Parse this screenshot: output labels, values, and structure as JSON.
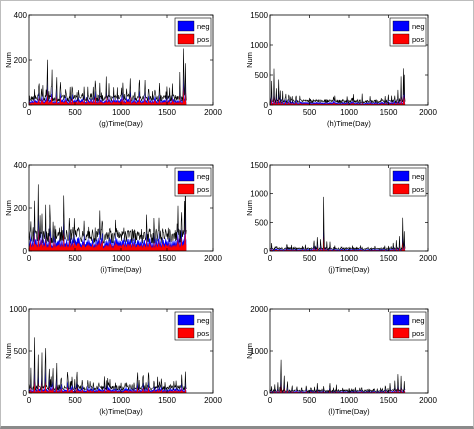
{
  "figure": {
    "background": "#ffffff",
    "colors": {
      "neg": "#0000ff",
      "pos": "#ff0000",
      "trace": "#000000",
      "axis_bg": "#ffffff"
    }
  },
  "chart_data": [
    {
      "type": "area",
      "id": "g",
      "xlabel": "(g)Time(Day)",
      "ylabel": "Num",
      "xlim": [
        0,
        2000
      ],
      "ylim": [
        0,
        400
      ],
      "xticks": [
        0,
        500,
        1000,
        1500,
        2000
      ],
      "yticks": [
        0,
        200,
        400
      ],
      "legend": {
        "entries": [
          "neg",
          "pos"
        ],
        "location": "top-right"
      },
      "series": [
        {
          "name": "neg",
          "baseline": 30,
          "pos_fraction": 0.35,
          "spikes": [
            [
              110,
              150
            ],
            [
              150,
              120
            ],
            [
              200,
              260
            ],
            [
              250,
              230
            ],
            [
              300,
              180
            ],
            [
              340,
              150
            ],
            [
              400,
              120
            ],
            [
              470,
              170
            ],
            [
              540,
              120
            ],
            [
              600,
              110
            ],
            [
              640,
              100
            ],
            [
              720,
              130
            ],
            [
              770,
              110
            ],
            [
              840,
              160
            ],
            [
              870,
              130
            ],
            [
              960,
              100
            ],
            [
              1020,
              140
            ],
            [
              1060,
              120
            ],
            [
              1100,
              150
            ],
            [
              1150,
              110
            ],
            [
              1200,
              170
            ],
            [
              1260,
              140
            ],
            [
              1300,
              120
            ],
            [
              1370,
              110
            ],
            [
              1420,
              140
            ],
            [
              1500,
              110
            ],
            [
              1560,
              120
            ],
            [
              1640,
              160
            ],
            [
              1680,
              300
            ],
            [
              1700,
              220
            ]
          ]
        },
        {
          "name": "pos"
        }
      ]
    },
    {
      "type": "area",
      "id": "h",
      "xlabel": "(h)Time(Day)",
      "ylabel": "Num",
      "xlim": [
        0,
        2000
      ],
      "ylim": [
        0,
        1500
      ],
      "xticks": [
        0,
        500,
        1000,
        1500,
        2000
      ],
      "yticks": [
        0,
        500,
        1000,
        1500
      ],
      "legend": {
        "entries": [
          "neg",
          "pos"
        ],
        "location": "top-right"
      },
      "series": [
        {
          "name": "neg",
          "baseline": 60,
          "pos_fraction": 0.3,
          "spikes": [
            [
              20,
              500
            ],
            [
              50,
              700
            ],
            [
              80,
              420
            ],
            [
              110,
              550
            ],
            [
              130,
              380
            ],
            [
              160,
              320
            ],
            [
              200,
              300
            ],
            [
              240,
              220
            ],
            [
              280,
              200
            ],
            [
              330,
              260
            ],
            [
              380,
              180
            ],
            [
              440,
              150
            ],
            [
              520,
              140
            ],
            [
              600,
              120
            ],
            [
              700,
              110
            ],
            [
              800,
              100
            ],
            [
              900,
              90
            ],
            [
              1000,
              80
            ],
            [
              1100,
              80
            ],
            [
              1200,
              90
            ],
            [
              1300,
              80
            ],
            [
              1400,
              100
            ],
            [
              1500,
              110
            ],
            [
              1580,
              180
            ],
            [
              1620,
              280
            ],
            [
              1660,
              520
            ],
            [
              1690,
              750
            ],
            [
              1700,
              600
            ]
          ]
        },
        {
          "name": "pos"
        }
      ]
    },
    {
      "type": "area",
      "id": "i",
      "xlabel": "(i)Time(Day)",
      "ylabel": "Num",
      "xlim": [
        0,
        2000
      ],
      "ylim": [
        0,
        400
      ],
      "xticks": [
        0,
        500,
        1000,
        1500,
        2000
      ],
      "yticks": [
        0,
        200,
        400
      ],
      "legend": {
        "entries": [
          "neg",
          "pos"
        ],
        "location": "top-right"
      },
      "series": [
        {
          "name": "neg",
          "baseline": 70,
          "pos_fraction": 0.35,
          "spikes": [
            [
              20,
              200
            ],
            [
              60,
              250
            ],
            [
              100,
              280
            ],
            [
              140,
              220
            ],
            [
              180,
              260
            ],
            [
              230,
              270
            ],
            [
              280,
              200
            ],
            [
              330,
              190
            ],
            [
              380,
              210
            ],
            [
              440,
              240
            ],
            [
              480,
              180
            ],
            [
              540,
              160
            ],
            [
              600,
              210
            ],
            [
              650,
              170
            ],
            [
              720,
              150
            ],
            [
              800,
              170
            ],
            [
              880,
              130
            ],
            [
              950,
              140
            ],
            [
              1030,
              150
            ],
            [
              1100,
              120
            ],
            [
              1180,
              130
            ],
            [
              1250,
              110
            ],
            [
              1320,
              120
            ],
            [
              1400,
              110
            ],
            [
              1480,
              100
            ],
            [
              1560,
              110
            ],
            [
              1620,
              160
            ],
            [
              1660,
              250
            ],
            [
              1690,
              330
            ],
            [
              1700,
              260
            ]
          ]
        },
        {
          "name": "pos"
        }
      ]
    },
    {
      "type": "area",
      "id": "j",
      "xlabel": "(j)Time(Day)",
      "ylabel": "Num",
      "xlim": [
        0,
        2000
      ],
      "ylim": [
        0,
        1500
      ],
      "xticks": [
        0,
        500,
        1000,
        1500,
        2000
      ],
      "yticks": [
        0,
        500,
        1000,
        1500
      ],
      "legend": {
        "entries": [
          "neg",
          "pos"
        ],
        "location": "top-right"
      },
      "series": [
        {
          "name": "neg",
          "baseline": 40,
          "pos_fraction": 0.3,
          "spikes": [
            [
              20,
              160
            ],
            [
              80,
              90
            ],
            [
              150,
              70
            ],
            [
              250,
              60
            ],
            [
              350,
              60
            ],
            [
              450,
              80
            ],
            [
              560,
              200
            ],
            [
              600,
              350
            ],
            [
              640,
              280
            ],
            [
              680,
              1120
            ],
            [
              720,
              230
            ],
            [
              760,
              180
            ],
            [
              820,
              120
            ],
            [
              900,
              90
            ],
            [
              1000,
              80
            ],
            [
              1100,
              80
            ],
            [
              1200,
              70
            ],
            [
              1300,
              80
            ],
            [
              1400,
              90
            ],
            [
              1500,
              120
            ],
            [
              1560,
              200
            ],
            [
              1600,
              260
            ],
            [
              1640,
              300
            ],
            [
              1680,
              560
            ],
            [
              1700,
              400
            ]
          ]
        },
        {
          "name": "pos"
        }
      ]
    },
    {
      "type": "area",
      "id": "k",
      "xlabel": "(k)Time(Day)",
      "ylabel": "Num",
      "xlim": [
        0,
        2000
      ],
      "ylim": [
        0,
        1000
      ],
      "xticks": [
        0,
        500,
        1000,
        1500,
        2000
      ],
      "yticks": [
        0,
        500,
        1000
      ],
      "legend": {
        "entries": [
          "neg",
          "pos"
        ],
        "location": "top-right"
      },
      "series": [
        {
          "name": "neg",
          "baseline": 60,
          "pos_fraction": 0.3,
          "spikes": [
            [
              20,
              320
            ],
            [
              60,
              700
            ],
            [
              100,
              500
            ],
            [
              140,
              560
            ],
            [
              180,
              820
            ],
            [
              220,
              380
            ],
            [
              260,
              450
            ],
            [
              300,
              360
            ],
            [
              350,
              300
            ],
            [
              420,
              400
            ],
            [
              470,
              250
            ],
            [
              520,
              300
            ],
            [
              580,
              220
            ],
            [
              640,
              260
            ],
            [
              700,
              200
            ],
            [
              760,
              180
            ],
            [
              820,
              220
            ],
            [
              880,
              180
            ],
            [
              940,
              170
            ],
            [
              1000,
              160
            ],
            [
              1060,
              200
            ],
            [
              1120,
              180
            ],
            [
              1180,
              400
            ],
            [
              1240,
              350
            ],
            [
              1300,
              420
            ],
            [
              1360,
              260
            ],
            [
              1420,
              220
            ],
            [
              1480,
              180
            ],
            [
              1540,
              160
            ],
            [
              1600,
              200
            ],
            [
              1660,
              320
            ],
            [
              1700,
              260
            ]
          ]
        },
        {
          "name": "pos"
        }
      ]
    },
    {
      "type": "area",
      "id": "l",
      "xlabel": "(l)Time(Day)",
      "ylabel": "Num",
      "xlim": [
        0,
        2000
      ],
      "ylim": [
        0,
        2000
      ],
      "xticks": [
        0,
        500,
        1000,
        1500,
        2000
      ],
      "yticks": [
        0,
        1000,
        2000
      ],
      "legend": {
        "entries": [
          "neg",
          "pos"
        ],
        "location": "top-right"
      },
      "series": [
        {
          "name": "neg",
          "baseline": 50,
          "pos_fraction": 0.3,
          "spikes": [
            [
              20,
              200
            ],
            [
              60,
              280
            ],
            [
              100,
              380
            ],
            [
              140,
              1150
            ],
            [
              180,
              640
            ],
            [
              220,
              360
            ],
            [
              280,
              300
            ],
            [
              340,
              260
            ],
            [
              400,
              240
            ],
            [
              460,
              200
            ],
            [
              520,
              220
            ],
            [
              600,
              320
            ],
            [
              680,
              220
            ],
            [
              760,
              260
            ],
            [
              840,
              200
            ],
            [
              920,
              180
            ],
            [
              1000,
              170
            ],
            [
              1080,
              190
            ],
            [
              1160,
              200
            ],
            [
              1240,
              180
            ],
            [
              1320,
              170
            ],
            [
              1400,
              200
            ],
            [
              1460,
              260
            ],
            [
              1520,
              300
            ],
            [
              1580,
              420
            ],
            [
              1620,
              600
            ],
            [
              1660,
              480
            ],
            [
              1700,
              360
            ]
          ]
        },
        {
          "name": "pos"
        }
      ]
    }
  ]
}
